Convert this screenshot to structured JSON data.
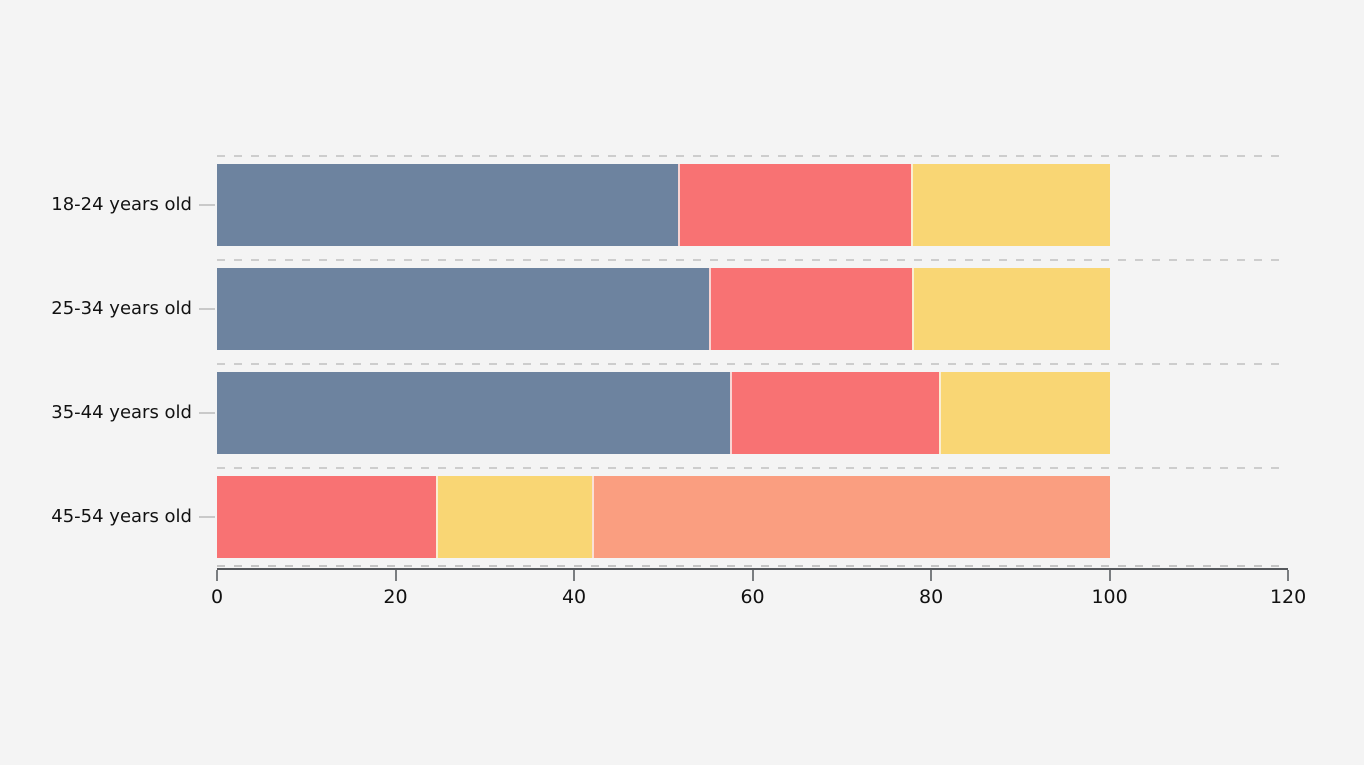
{
  "chart_data": {
    "type": "bar",
    "orientation": "horizontal",
    "stacked": true,
    "title": "",
    "xlabel": "",
    "ylabel": "",
    "legend_position": "none",
    "grid": "dashed horizontal band separators",
    "background_color": "#f4f4f4",
    "categories": [
      "18-24 years old",
      "25-34 years old",
      "35-44 years old",
      "45-54 years old"
    ],
    "series": [
      {
        "name": "slate-blue-segment",
        "color": "#6d839f",
        "values": [
          51.6,
          55.1,
          57.5,
          0
        ]
      },
      {
        "name": "coral-red-segment",
        "color": "#f87273",
        "values": [
          26.1,
          22.8,
          23.4,
          24.5
        ]
      },
      {
        "name": "yellow-segment",
        "color": "#f9d674",
        "values": [
          22.3,
          22.1,
          19.1,
          17.5
        ]
      },
      {
        "name": "salmon-segment",
        "color": "#fa9e80",
        "values": [
          0,
          0,
          0,
          58.0
        ]
      }
    ],
    "x_axis": {
      "range": [
        0,
        120
      ],
      "tick_labels": [
        "0",
        "20",
        "40",
        "60",
        "80",
        "100",
        "120"
      ],
      "tick_values": [
        0,
        20,
        40,
        60,
        80,
        100,
        120
      ]
    }
  }
}
